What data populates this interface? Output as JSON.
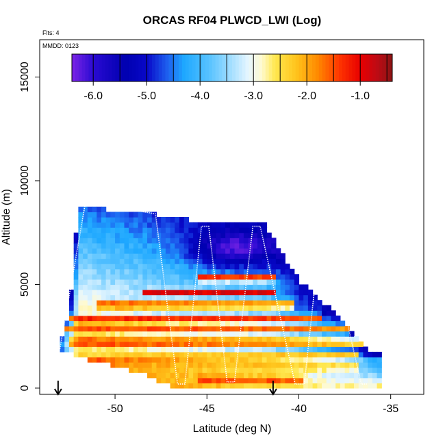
{
  "chart_data": {
    "type": "heatmap",
    "title": "ORCAS RF04 PLWCD_LWI (Log)",
    "flights_note": "Flts: 4",
    "mmdd_note": "MMDD: 0123",
    "xlabel": "Latitude (deg N)",
    "ylabel": "Altitude (m)",
    "xlim": [
      -54.1,
      -33.2
    ],
    "ylim": [
      -300,
      16800
    ],
    "x_ticks": [
      -50,
      -45,
      -40,
      -35
    ],
    "x_tick_labels": [
      "-50",
      "-45",
      "-40",
      "-35"
    ],
    "y_ticks": [
      0,
      5000,
      10000,
      15000
    ],
    "y_tick_labels": [
      "0",
      "5000",
      "10000",
      "15000"
    ],
    "colorbar": {
      "range": [
        -6.4,
        -0.4
      ],
      "ticks": [
        -6.0,
        -5.0,
        -4.0,
        -3.0,
        -2.0,
        -1.0
      ],
      "tick_labels": [
        "-6.0",
        "-5.0",
        "-4.0",
        "-3.0",
        "-2.0",
        "-1.0"
      ],
      "stops": [
        {
          "v": -6.4,
          "color": "#7b24e6"
        },
        {
          "v": -6.0,
          "color": "#2a0ad2"
        },
        {
          "v": -5.4,
          "color": "#0000b0"
        },
        {
          "v": -5.0,
          "color": "#0808c8"
        },
        {
          "v": -4.6,
          "color": "#1e62f0"
        },
        {
          "v": -4.3,
          "color": "#1ea8ff"
        },
        {
          "v": -3.8,
          "color": "#5cc4ff"
        },
        {
          "v": -3.4,
          "color": "#a8e0ff"
        },
        {
          "v": -3.1,
          "color": "#e6f6ff"
        },
        {
          "v": -2.85,
          "color": "#fffad0"
        },
        {
          "v": -2.6,
          "color": "#ffe850"
        },
        {
          "v": -2.2,
          "color": "#ffc41c"
        },
        {
          "v": -1.8,
          "color": "#ff8a00"
        },
        {
          "v": -1.4,
          "color": "#ff3600"
        },
        {
          "v": -1.0,
          "color": "#e80000"
        },
        {
          "v": -0.7,
          "color": "#bf0a14"
        },
        {
          "v": -0.4,
          "color": "#8c1414"
        }
      ]
    },
    "grid": false,
    "legend": "top",
    "heatmap_grid": {
      "lat_start": -53.0,
      "lat_end": -35.6,
      "lat_step": 0.25,
      "alt_start": 0,
      "alt_end": 9000,
      "alt_step": 250
    },
    "coverage": [
      {
        "lat": -53.0,
        "top": 2000
      },
      {
        "lat": -52.5,
        "top": 3500
      },
      {
        "lat": -52.0,
        "top": 8900
      },
      {
        "lat": -51.5,
        "top": 8700
      },
      {
        "lat": -48.0,
        "top": 8400
      },
      {
        "lat": -45.0,
        "top": 8000
      },
      {
        "lat": -42.0,
        "top": 8100
      },
      {
        "lat": -40.0,
        "top": 5200
      },
      {
        "lat": -38.0,
        "top": 3600
      },
      {
        "lat": -36.0,
        "top": 1700
      }
    ],
    "bottom_boundary": [
      {
        "lat": -53.0,
        "bottom": 1900
      },
      {
        "lat": -51.5,
        "bottom": 1400
      },
      {
        "lat": -50.0,
        "bottom": 1100
      },
      {
        "lat": -48.5,
        "bottom": 700
      },
      {
        "lat": -47.5,
        "bottom": 300
      },
      {
        "lat": -46.5,
        "bottom": 0
      },
      {
        "lat": -36.2,
        "bottom": 0
      }
    ],
    "bands": [
      {
        "alt": 2700,
        "lat_from": -53.0,
        "lat_to": -37.5,
        "value": -0.9
      },
      {
        "alt": 2100,
        "lat_from": -52.5,
        "lat_to": -36.0,
        "value": -1.6
      },
      {
        "alt": 3300,
        "lat_from": -52.5,
        "lat_to": -39.0,
        "value": -1.1
      },
      {
        "alt": 3900,
        "lat_from": -51.0,
        "lat_to": -40.5,
        "value": -0.8
      },
      {
        "alt": 4500,
        "lat_from": -48.5,
        "lat_to": -41.5,
        "value": -0.9
      },
      {
        "alt": 5200,
        "lat_from": -45.5,
        "lat_to": -41.5,
        "value": -0.7
      },
      {
        "alt": 1500,
        "lat_from": -50.0,
        "lat_to": -37.0,
        "value": -2.0
      },
      {
        "alt": 900,
        "lat_from": -47.5,
        "lat_to": -37.0,
        "value": -2.2
      },
      {
        "alt": 300,
        "lat_from": -45.5,
        "lat_to": -40.0,
        "value": -1.3
      }
    ],
    "flight_track": [
      {
        "lat": -53.0,
        "alt": 1900
      },
      {
        "lat": -51.6,
        "alt": 9000
      },
      {
        "lat": -47.8,
        "alt": 8400
      },
      {
        "lat": -46.6,
        "alt": 200
      },
      {
        "lat": -46.2,
        "alt": 200
      },
      {
        "lat": -45.3,
        "alt": 7800
      },
      {
        "lat": -44.9,
        "alt": 7800
      },
      {
        "lat": -43.9,
        "alt": 300
      },
      {
        "lat": -43.5,
        "alt": 300
      },
      {
        "lat": -42.5,
        "alt": 7800
      },
      {
        "lat": -42.1,
        "alt": 7800
      },
      {
        "lat": -40.2,
        "alt": 200
      },
      {
        "lat": -39.7,
        "alt": 200
      },
      {
        "lat": -38.9,
        "alt": 6800
      },
      {
        "lat": -38.3,
        "alt": 6800
      },
      {
        "lat": -36.6,
        "alt": 200
      },
      {
        "lat": -36.3,
        "alt": 200
      }
    ],
    "arrows": [
      {
        "lat": -53.1
      },
      {
        "lat": -41.4
      }
    ]
  }
}
